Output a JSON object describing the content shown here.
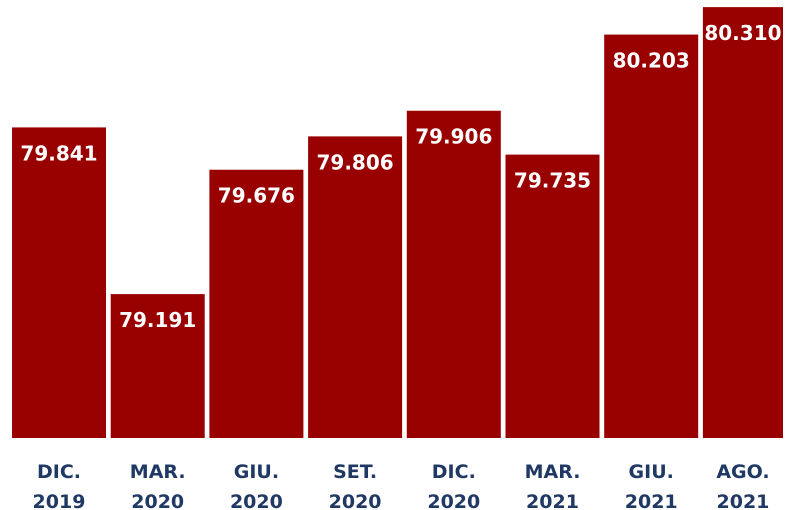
{
  "chart_data": {
    "type": "bar",
    "categories": [
      "DIC. 2019",
      "MAR. 2020",
      "GIU. 2020",
      "SET. 2020",
      "DIC. 2020",
      "MAR. 2021",
      "GIU. 2021",
      "AGO. 2021"
    ],
    "values": [
      79841,
      79191,
      79676,
      79806,
      79906,
      79735,
      80203,
      80310
    ],
    "value_labels": [
      "79.841",
      "79.191",
      "79.676",
      "79.806",
      "79.906",
      "79.735",
      "80.203",
      "80.310"
    ],
    "color": "#990000",
    "ylim": [
      78630,
      80330
    ]
  }
}
